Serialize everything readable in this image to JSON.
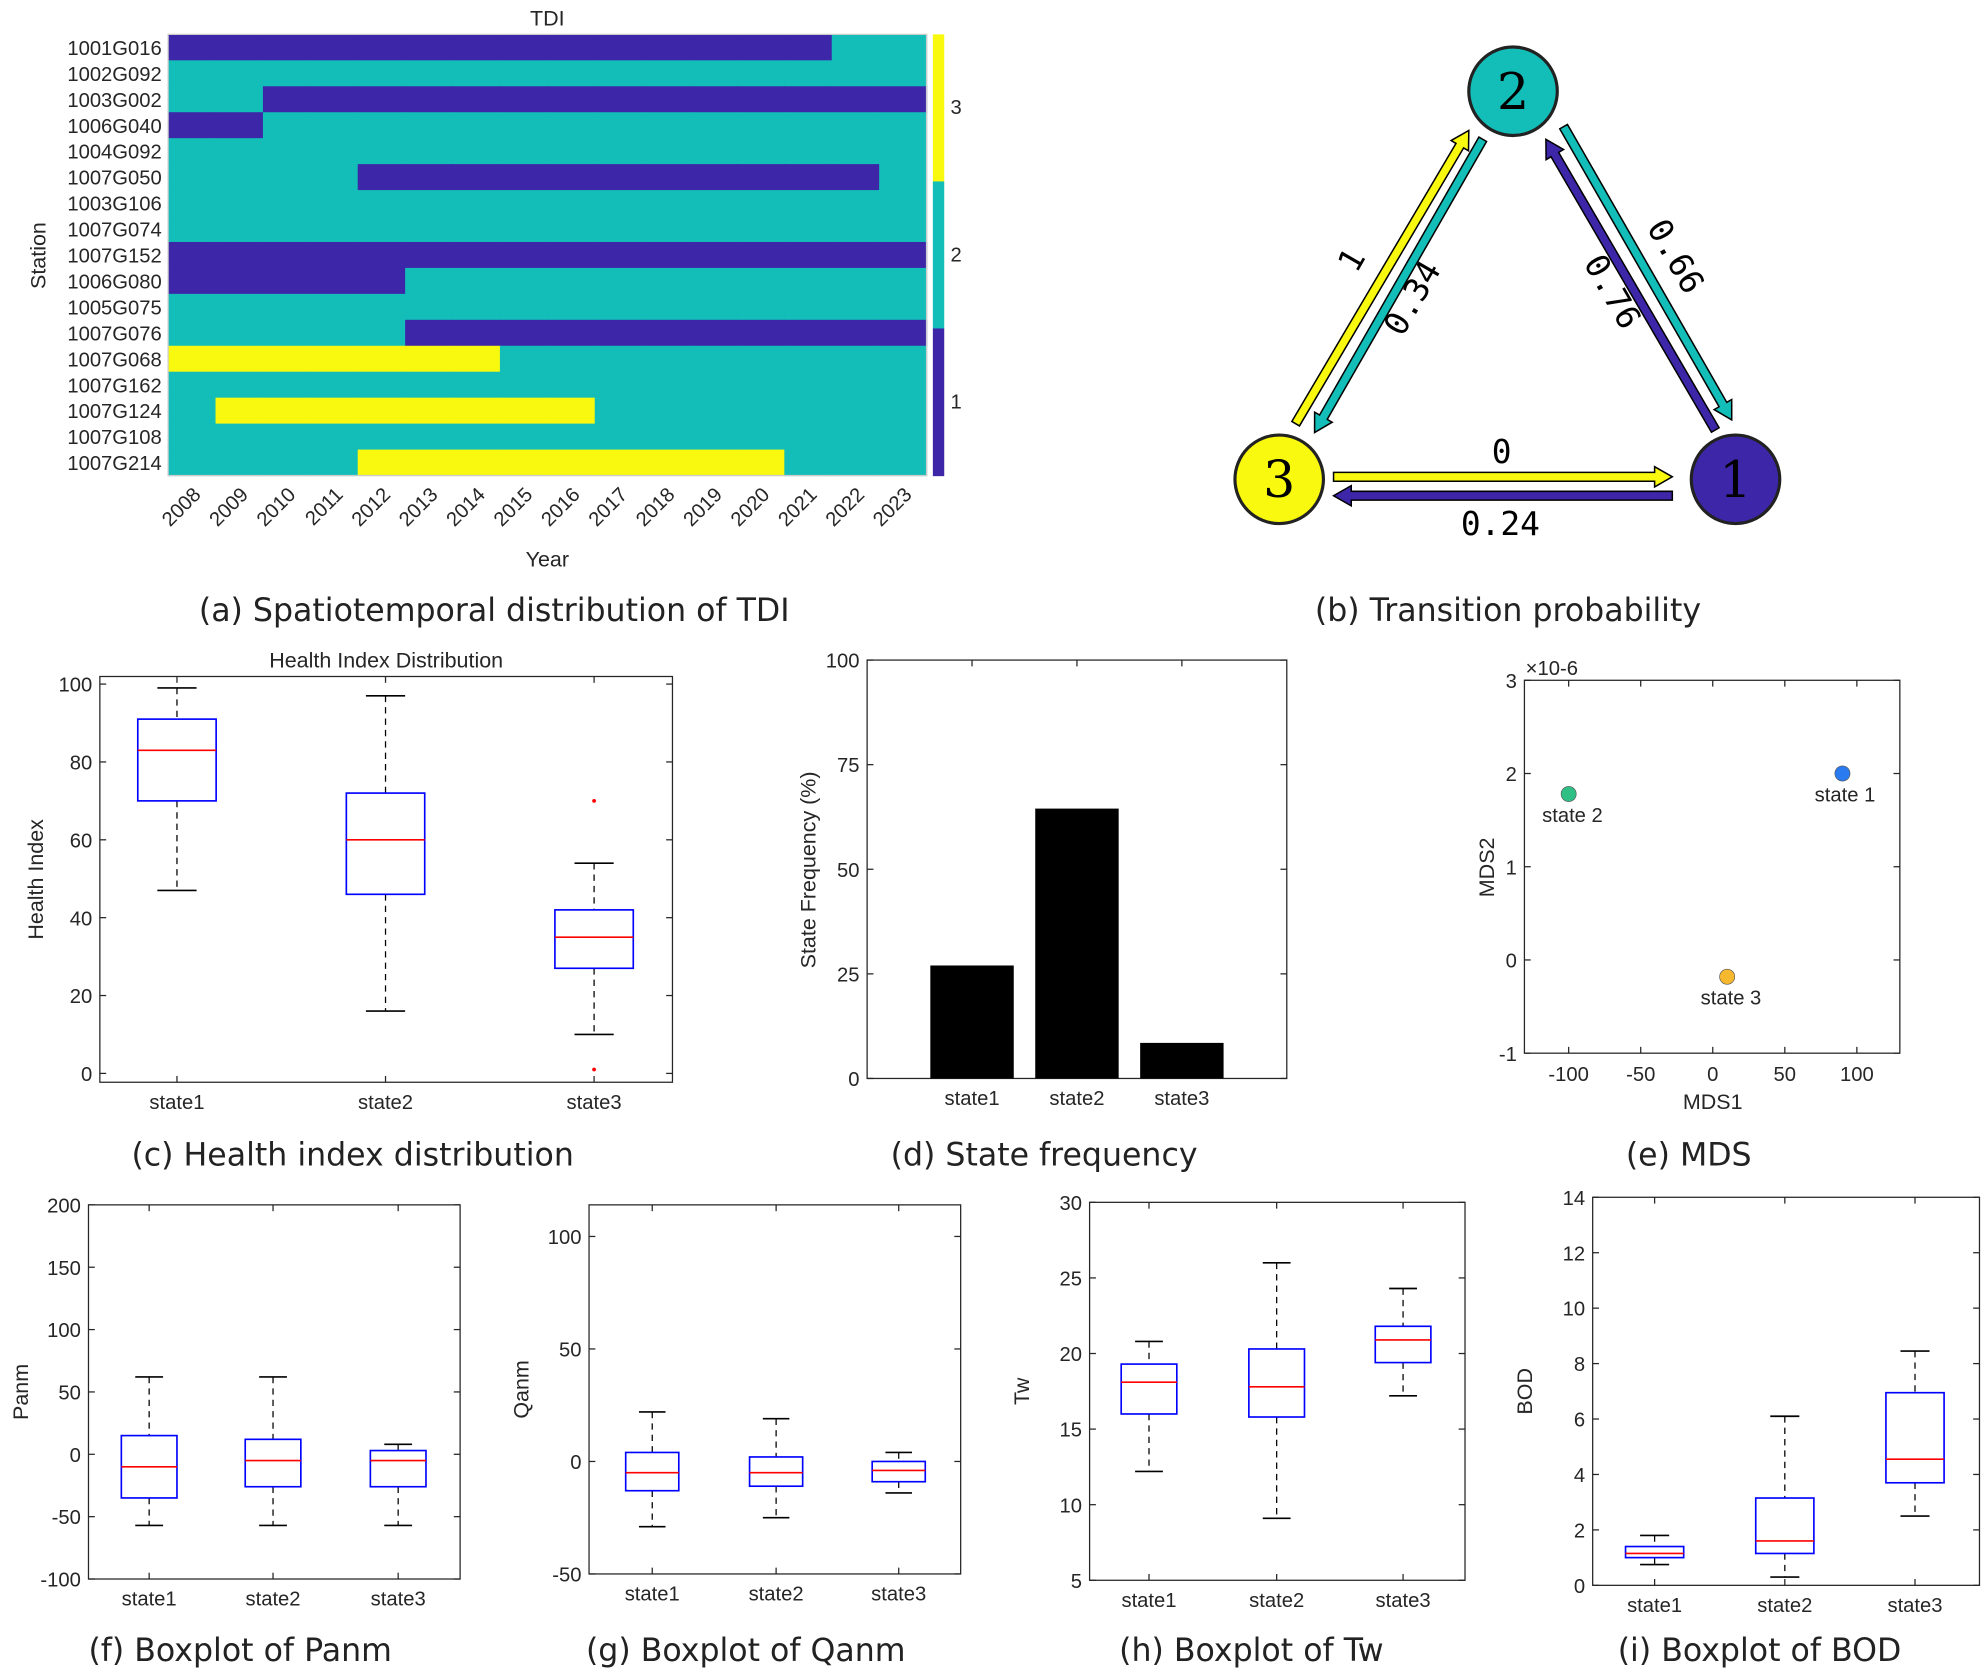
{
  "captions": {
    "a": "(a) Spatiotemporal distribution of TDI",
    "b": "(b) Transition probability",
    "c": "(c) Health index distribution",
    "d": "(d) State frequency",
    "e": "(e) MDS",
    "f": "(f) Boxplot of Panm",
    "g": "(g) Boxplot of Qanm",
    "h": "(h) Boxplot of Tw",
    "i": "(i) Boxplot of BOD"
  },
  "chart_data": [
    {
      "id": "a",
      "type": "heatmap",
      "title": "TDI",
      "xlabel": "Year",
      "ylabel": "Station",
      "x": [
        "2008",
        "2009",
        "2010",
        "2011",
        "2012",
        "2013",
        "2014",
        "2015",
        "2016",
        "2017",
        "2018",
        "2019",
        "2020",
        "2021",
        "2022",
        "2023"
      ],
      "y": [
        "1001G016",
        "1002G092",
        "1003G002",
        "1006G040",
        "1004G092",
        "1007G050",
        "1003G106",
        "1007G074",
        "1007G152",
        "1006G080",
        "1005G075",
        "1007G076",
        "1007G068",
        "1007G162",
        "1007G124",
        "1007G108",
        "1007G214"
      ],
      "values": [
        [
          1,
          1,
          1,
          1,
          1,
          1,
          1,
          1,
          1,
          1,
          1,
          1,
          1,
          1,
          2,
          2
        ],
        [
          2,
          2,
          2,
          2,
          2,
          2,
          2,
          2,
          2,
          2,
          2,
          2,
          2,
          2,
          2,
          2
        ],
        [
          2,
          2,
          1,
          1,
          1,
          1,
          1,
          1,
          1,
          1,
          1,
          1,
          1,
          1,
          1,
          1
        ],
        [
          1,
          1,
          2,
          2,
          2,
          2,
          2,
          2,
          2,
          2,
          2,
          2,
          2,
          2,
          2,
          2
        ],
        [
          2,
          2,
          2,
          2,
          2,
          2,
          2,
          2,
          2,
          2,
          2,
          2,
          2,
          2,
          2,
          2
        ],
        [
          2,
          2,
          2,
          2,
          1,
          1,
          1,
          1,
          1,
          1,
          1,
          1,
          1,
          1,
          1,
          2
        ],
        [
          2,
          2,
          2,
          2,
          2,
          2,
          2,
          2,
          2,
          2,
          2,
          2,
          2,
          2,
          2,
          2
        ],
        [
          2,
          2,
          2,
          2,
          2,
          2,
          2,
          2,
          2,
          2,
          2,
          2,
          2,
          2,
          2,
          2
        ],
        [
          1,
          1,
          1,
          1,
          1,
          1,
          1,
          1,
          1,
          1,
          1,
          1,
          1,
          1,
          1,
          1
        ],
        [
          1,
          1,
          1,
          1,
          1,
          2,
          2,
          2,
          2,
          2,
          2,
          2,
          2,
          2,
          2,
          2
        ],
        [
          2,
          2,
          2,
          2,
          2,
          2,
          2,
          2,
          2,
          2,
          2,
          2,
          2,
          2,
          2,
          2
        ],
        [
          2,
          2,
          2,
          2,
          2,
          1,
          1,
          1,
          1,
          1,
          1,
          1,
          1,
          1,
          1,
          1
        ],
        [
          3,
          3,
          3,
          3,
          3,
          3,
          3,
          2,
          2,
          2,
          2,
          2,
          2,
          2,
          2,
          2
        ],
        [
          2,
          2,
          2,
          2,
          2,
          2,
          2,
          2,
          2,
          2,
          2,
          2,
          2,
          2,
          2,
          2
        ],
        [
          2,
          3,
          3,
          3,
          3,
          3,
          3,
          3,
          3,
          2,
          2,
          2,
          2,
          2,
          2,
          2
        ],
        [
          2,
          2,
          2,
          2,
          2,
          2,
          2,
          2,
          2,
          2,
          2,
          2,
          2,
          2,
          2,
          2
        ],
        [
          2,
          2,
          2,
          2,
          3,
          3,
          3,
          3,
          3,
          3,
          3,
          3,
          3,
          2,
          2,
          2
        ]
      ],
      "colormap": {
        "1": "#3d26a8",
        "2": "#13bdb8",
        "3": "#f9f90f"
      },
      "colorbar_ticks": [
        "1",
        "2",
        "3"
      ]
    },
    {
      "id": "b",
      "type": "diagram",
      "nodes": [
        {
          "label": "1",
          "color": "#3d26a8"
        },
        {
          "label": "2",
          "color": "#13bdb8"
        },
        {
          "label": "3",
          "color": "#f9f90f"
        }
      ],
      "edges": [
        {
          "from": "3",
          "to": "2",
          "label": "1",
          "color": "#f9f90f"
        },
        {
          "from": "2",
          "to": "3",
          "label": "0.34",
          "color": "#13bdb8"
        },
        {
          "from": "2",
          "to": "1",
          "label": "0.66",
          "color": "#13bdb8"
        },
        {
          "from": "1",
          "to": "2",
          "label": "0.76",
          "color": "#3d26a8"
        },
        {
          "from": "3",
          "to": "1",
          "label": "0",
          "color": "#f9f90f"
        },
        {
          "from": "1",
          "to": "3",
          "label": "0.24",
          "color": "#3d26a8"
        }
      ]
    },
    {
      "id": "c",
      "type": "box",
      "title": "Health Index Distribution",
      "ylabel": "Health Index",
      "categories": [
        "state1",
        "state2",
        "state3"
      ],
      "yticks": [
        "0",
        "20",
        "40",
        "60",
        "80",
        "100"
      ],
      "boxes": [
        {
          "min": 47,
          "q1": 70,
          "median": 83,
          "q3": 91,
          "max": 99,
          "outliers": []
        },
        {
          "min": 16,
          "q1": 46,
          "median": 60,
          "q3": 72,
          "max": 97,
          "outliers": []
        },
        {
          "min": 10,
          "q1": 27,
          "median": 35,
          "q3": 42,
          "max": 54,
          "outliers": [
            70,
            1
          ]
        }
      ]
    },
    {
      "id": "d",
      "type": "bar",
      "ylabel": "State Frequency (%)",
      "categories": [
        "state1",
        "state2",
        "state3"
      ],
      "values": [
        27,
        64.5,
        8.5
      ],
      "ylim": [
        0,
        100
      ],
      "yticks": [
        "0",
        "25",
        "50",
        "75",
        "100"
      ],
      "color": "#000000"
    },
    {
      "id": "e",
      "type": "scatter",
      "xlabel": "MDS1",
      "ylabel": "MDS2",
      "y_exponent": "×10-6",
      "xticks": [
        "-100",
        "-50",
        "0",
        "50",
        "100"
      ],
      "yticks": [
        "-1",
        "0",
        "1",
        "2",
        "3"
      ],
      "ylim": [
        -1,
        3
      ],
      "points": [
        {
          "label": "state 1",
          "x": 90,
          "y": 2.0,
          "color": "#2b7bf0"
        },
        {
          "label": "state 2",
          "x": -100,
          "y": 1.78,
          "color": "#2fbf85"
        },
        {
          "label": "state 3",
          "x": 10,
          "y": -0.18,
          "color": "#f5b82e"
        }
      ]
    },
    {
      "id": "f",
      "type": "box",
      "ylabel": "Panm",
      "categories": [
        "state1",
        "state2",
        "state3"
      ],
      "ylim": [
        -100,
        200
      ],
      "yticks": [
        "-100",
        "-50",
        "0",
        "50",
        "100",
        "150",
        "200"
      ],
      "boxes": [
        {
          "min": -57,
          "q1": -35,
          "median": -10,
          "q3": 15,
          "max": 62,
          "outliers": []
        },
        {
          "min": -57,
          "q1": -26,
          "median": -5,
          "q3": 12,
          "max": 62,
          "outliers": []
        },
        {
          "min": -57,
          "q1": -26,
          "median": -5,
          "q3": 3,
          "max": 8,
          "outliers": []
        }
      ]
    },
    {
      "id": "g",
      "type": "box",
      "ylabel": "Qanm",
      "categories": [
        "state1",
        "state2",
        "state3"
      ],
      "yticks": [
        "-50",
        "0",
        "50",
        "100"
      ],
      "boxes": [
        {
          "min": -29,
          "q1": -13,
          "median": -5,
          "q3": 4,
          "max": 22,
          "outliers": []
        },
        {
          "min": -25,
          "q1": -11,
          "median": -5,
          "q3": 2,
          "max": 19,
          "outliers": []
        },
        {
          "min": -14,
          "q1": -9,
          "median": -4,
          "q3": 0,
          "max": 4,
          "outliers": []
        }
      ]
    },
    {
      "id": "h",
      "type": "box",
      "ylabel": "Tw",
      "categories": [
        "state1",
        "state2",
        "state3"
      ],
      "ylim": [
        5,
        30
      ],
      "yticks": [
        "5",
        "10",
        "15",
        "20",
        "25",
        "30"
      ],
      "boxes": [
        {
          "min": 12.2,
          "q1": 16,
          "median": 18.1,
          "q3": 19.3,
          "max": 20.8,
          "outliers": []
        },
        {
          "min": 9.1,
          "q1": 15.8,
          "median": 17.8,
          "q3": 20.3,
          "max": 26,
          "outliers": []
        },
        {
          "min": 17.2,
          "q1": 19.4,
          "median": 20.9,
          "q3": 21.8,
          "max": 24.3,
          "outliers": []
        }
      ]
    },
    {
      "id": "i",
      "type": "box",
      "ylabel": "BOD",
      "categories": [
        "state1",
        "state2",
        "state3"
      ],
      "ylim": [
        0,
        14
      ],
      "yticks": [
        "0",
        "2",
        "4",
        "6",
        "8",
        "10",
        "12",
        "14"
      ],
      "boxes": [
        {
          "min": 0.75,
          "q1": 1.0,
          "median": 1.15,
          "q3": 1.4,
          "max": 1.8,
          "outliers": []
        },
        {
          "min": 0.3,
          "q1": 1.15,
          "median": 1.6,
          "q3": 3.15,
          "max": 6.1,
          "outliers": []
        },
        {
          "min": 2.5,
          "q1": 3.7,
          "median": 4.55,
          "q3": 6.95,
          "max": 8.45,
          "outliers": []
        }
      ]
    }
  ]
}
